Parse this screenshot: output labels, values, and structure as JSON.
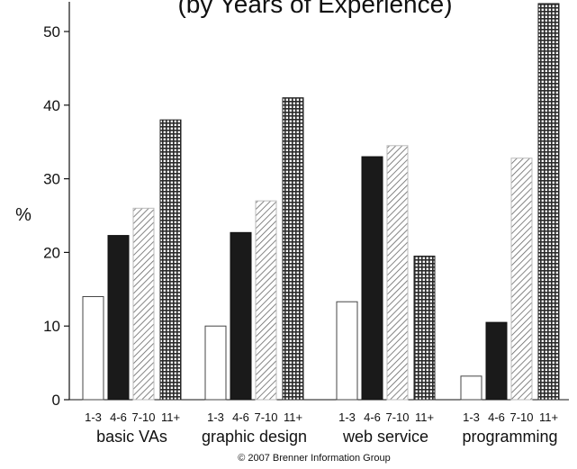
{
  "chart_data": {
    "type": "bar",
    "title": "(by Years of Experience)",
    "ylabel": "%",
    "ylim": [
      0,
      54
    ],
    "yticks": [
      0,
      10,
      20,
      30,
      40,
      50
    ],
    "categories": [
      "basic VAs",
      "graphic design",
      "web service",
      "programming"
    ],
    "series": [
      {
        "name": "1-3",
        "fill": "white",
        "values": [
          14,
          10,
          13.3,
          3.2
        ]
      },
      {
        "name": "4-6",
        "fill": "black",
        "values": [
          22.3,
          22.7,
          33,
          10.5
        ]
      },
      {
        "name": "7-10",
        "fill": "diagonal-hatch",
        "values": [
          26,
          27,
          34.5,
          32.8
        ]
      },
      {
        "name": "11+",
        "fill": "crosshatch",
        "values": [
          38,
          41,
          19.5,
          54
        ]
      }
    ]
  },
  "credit": "© 2007 Brenner Information Group"
}
